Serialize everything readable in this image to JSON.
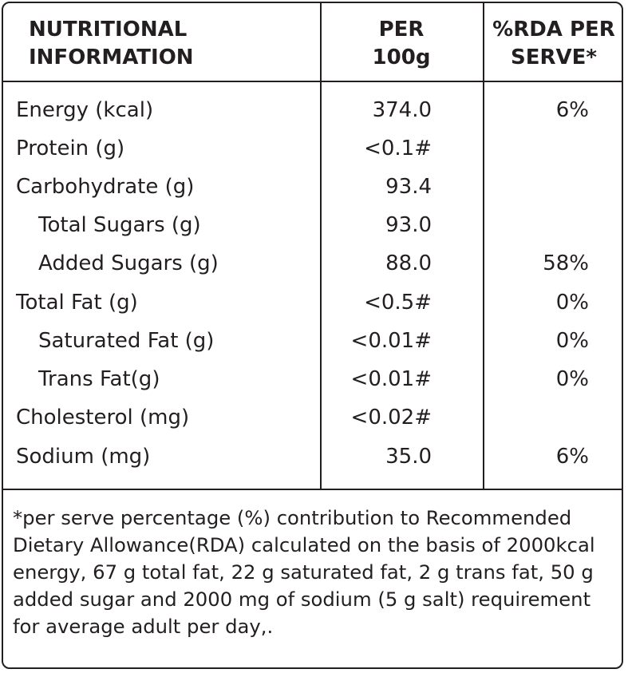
{
  "header": {
    "col1": [
      "NUTRITIONAL",
      "INFORMATION"
    ],
    "col2": [
      "PER",
      "100g"
    ],
    "col3": [
      "%RDA PER",
      "SERVE*"
    ]
  },
  "rows": [
    {
      "name": "Energy (kcal)",
      "per100g": "374.0",
      "rda": "6%",
      "indent": false
    },
    {
      "name": "Protein (g)",
      "per100g": "<0.1#",
      "rda": "",
      "indent": false
    },
    {
      "name": "Carbohydrate (g)",
      "per100g": "93.4",
      "rda": "",
      "indent": false
    },
    {
      "name": "Total Sugars (g)",
      "per100g": "93.0",
      "rda": "",
      "indent": true
    },
    {
      "name": "Added Sugars (g)",
      "per100g": "88.0",
      "rda": "58%",
      "indent": true
    },
    {
      "name": "Total Fat (g)",
      "per100g": "<0.5#",
      "rda": "0%",
      "indent": false
    },
    {
      "name": "Saturated Fat (g)",
      "per100g": "<0.01#",
      "rda": "0%",
      "indent": true
    },
    {
      "name": "Trans Fat(g)",
      "per100g": "<0.01#",
      "rda": "0%",
      "indent": true
    },
    {
      "name": "Cholesterol (mg)",
      "per100g": "<0.02#",
      "rda": "",
      "indent": false
    },
    {
      "name": "Sodium (mg)",
      "per100g": "35.0",
      "rda": "6%",
      "indent": false
    }
  ],
  "footnote": "*per serve percentage (%) contribution to Recommended Dietary Allowance(RDA)  calculated on the basis of 2000kcal energy, 67 g total fat, 22 g saturated fat, 2 g trans fat, 50 g added sugar and 2000 mg of sodium (5 g salt) requirement for average adult per day,."
}
